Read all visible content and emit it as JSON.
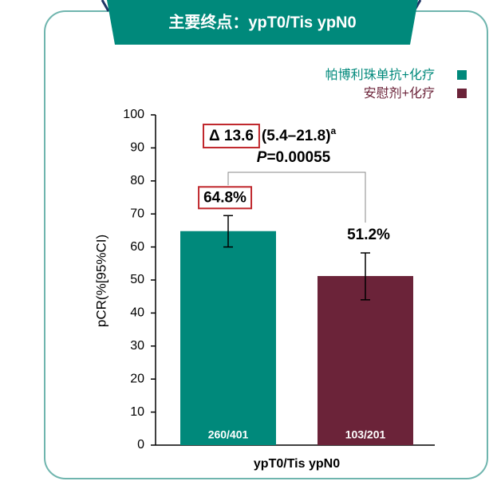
{
  "chart_data": {
    "type": "bar",
    "title": "主要终点：ypT0/Tis ypN0",
    "y_label": "pCR(%[95%CI)",
    "x_label": "ypT0/Tis ypN0",
    "ylim": [
      0,
      100
    ],
    "yticks": [
      0,
      10,
      20,
      30,
      40,
      50,
      60,
      70,
      80,
      90,
      100
    ],
    "series": [
      {
        "name": "帕博利珠单抗+化疗",
        "color": "#00897b",
        "values": [
          64.8
        ],
        "value_labels": [
          "64.8%"
        ],
        "ci_low": [
          60
        ],
        "ci_high": [
          69.5
        ],
        "counts": [
          "260/401"
        ]
      },
      {
        "name": "安慰剂+化疗",
        "color": "#6b2339",
        "values": [
          51.2
        ],
        "value_labels": [
          "51.2%"
        ],
        "ci_low": [
          44
        ],
        "ci_high": [
          58.2
        ],
        "counts": [
          "103/201"
        ]
      }
    ],
    "annotation": {
      "delta": "Δ 13.6",
      "ci": "(5.4–21.8)",
      "footnote": "a",
      "p_symbol": "P",
      "p_text": "=0.00055"
    }
  }
}
